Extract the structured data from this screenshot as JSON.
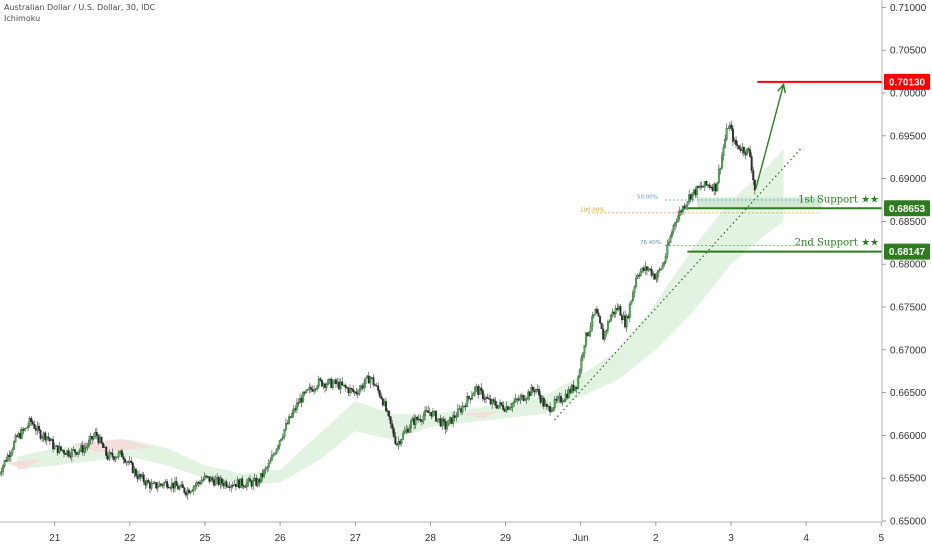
{
  "header": {
    "symbol_line": "Australian Dollar / U.S. Dollar, 30, IDC",
    "indicator": "Ichimoku"
  },
  "chart_data": {
    "type": "candlestick",
    "instrument": "Australian Dollar / U.S. Dollar",
    "timeframe": "30",
    "source": "IDC",
    "indicator": "Ichimoku",
    "y_axis": {
      "ticks": [
        0.65,
        0.655,
        0.66,
        0.665,
        0.67,
        0.675,
        0.68,
        0.685,
        0.69,
        0.695,
        0.7,
        0.705,
        0.71
      ],
      "tick_labels": [
        "0.65000",
        "0.65500",
        "0.66000",
        "0.66500",
        "0.67000",
        "0.67500",
        "0.68000",
        "0.68500",
        "0.69000",
        "0.69500",
        "0.70000",
        "0.70500",
        "0.71000"
      ],
      "ylim": [
        0.6496,
        0.7115
      ]
    },
    "x_axis": {
      "tick_labels": [
        "21",
        "22",
        "25",
        "26",
        "27",
        "28",
        "29",
        "Jun",
        "2",
        "3",
        "4",
        "5"
      ],
      "tick_positions_days": [
        1,
        2,
        3,
        4,
        5,
        6,
        7,
        8,
        9,
        10,
        11,
        12
      ],
      "xlim_days": [
        0.25,
        12.0
      ]
    },
    "price_path": [
      [
        0.25,
        0.6555
      ],
      [
        0.35,
        0.6572
      ],
      [
        0.5,
        0.6598
      ],
      [
        0.6,
        0.6606
      ],
      [
        0.68,
        0.6617
      ],
      [
        0.8,
        0.6602
      ],
      [
        0.9,
        0.6599
      ],
      [
        1.0,
        0.6585
      ],
      [
        1.2,
        0.658
      ],
      [
        1.4,
        0.6585
      ],
      [
        1.55,
        0.6602
      ],
      [
        1.7,
        0.6575
      ],
      [
        1.9,
        0.6578
      ],
      [
        2.1,
        0.6553
      ],
      [
        2.3,
        0.654
      ],
      [
        2.5,
        0.6545
      ],
      [
        2.75,
        0.6535
      ],
      [
        3.0,
        0.655
      ],
      [
        3.2,
        0.6545
      ],
      [
        3.45,
        0.6544
      ],
      [
        3.7,
        0.6545
      ],
      [
        3.85,
        0.6565
      ],
      [
        4.0,
        0.6597
      ],
      [
        4.25,
        0.664
      ],
      [
        4.5,
        0.6662
      ],
      [
        4.75,
        0.666
      ],
      [
        5.0,
        0.665
      ],
      [
        5.2,
        0.6668
      ],
      [
        5.35,
        0.6645
      ],
      [
        5.55,
        0.659
      ],
      [
        5.75,
        0.6615
      ],
      [
        6.0,
        0.6628
      ],
      [
        6.2,
        0.661
      ],
      [
        6.4,
        0.663
      ],
      [
        6.6,
        0.6655
      ],
      [
        6.8,
        0.6638
      ],
      [
        7.0,
        0.6633
      ],
      [
        7.15,
        0.664
      ],
      [
        7.4,
        0.6655
      ],
      [
        7.55,
        0.663
      ],
      [
        7.75,
        0.6643
      ],
      [
        7.95,
        0.666
      ],
      [
        8.05,
        0.671
      ],
      [
        8.2,
        0.6745
      ],
      [
        8.3,
        0.6715
      ],
      [
        8.4,
        0.674
      ],
      [
        8.5,
        0.675
      ],
      [
        8.6,
        0.673
      ],
      [
        8.75,
        0.679
      ],
      [
        8.9,
        0.6795
      ],
      [
        9.0,
        0.6785
      ],
      [
        9.1,
        0.68
      ],
      [
        9.25,
        0.685
      ],
      [
        9.35,
        0.6865
      ],
      [
        9.45,
        0.688
      ],
      [
        9.6,
        0.689
      ],
      [
        9.7,
        0.6893
      ],
      [
        9.8,
        0.689
      ],
      [
        9.92,
        0.6945
      ],
      [
        9.97,
        0.6965
      ],
      [
        10.05,
        0.694
      ],
      [
        10.15,
        0.6935
      ],
      [
        10.25,
        0.693
      ],
      [
        10.32,
        0.6885
      ]
    ],
    "ichimoku_cloud": [
      [
        0.5,
        0.656,
        0.6575
      ],
      [
        1.0,
        0.6565,
        0.6585
      ],
      [
        1.5,
        0.657,
        0.659
      ],
      [
        2.0,
        0.6575,
        0.6595
      ],
      [
        2.5,
        0.6565,
        0.6585
      ],
      [
        3.0,
        0.655,
        0.6565
      ],
      [
        3.5,
        0.6543,
        0.6555
      ],
      [
        4.0,
        0.6545,
        0.656
      ],
      [
        4.5,
        0.657,
        0.66
      ],
      [
        5.0,
        0.6605,
        0.664
      ],
      [
        5.5,
        0.6595,
        0.6625
      ],
      [
        6.0,
        0.661,
        0.6625
      ],
      [
        6.5,
        0.6615,
        0.663
      ],
      [
        7.0,
        0.662,
        0.664
      ],
      [
        7.5,
        0.6625,
        0.6645
      ],
      [
        8.0,
        0.6645,
        0.667
      ],
      [
        8.5,
        0.6665,
        0.67
      ],
      [
        9.0,
        0.67,
        0.6755
      ],
      [
        9.5,
        0.6745,
        0.682
      ],
      [
        10.0,
        0.68,
        0.6875
      ],
      [
        10.4,
        0.683,
        0.6905
      ],
      [
        10.7,
        0.685,
        0.6935
      ]
    ],
    "levels": [
      {
        "name": "resistance",
        "value": 0.7013,
        "label": "0.70130",
        "color": "#ff0000"
      },
      {
        "name": "1st Support",
        "value": 0.68653,
        "label": "0.68653",
        "annotation": "1st Support ★★",
        "color": "#2d7d1f"
      },
      {
        "name": "2nd Support",
        "value": 0.68147,
        "label": "0.68147",
        "annotation": "2nd Support ★★",
        "color": "#2d7d1f"
      }
    ],
    "fibonacci": [
      {
        "label": "50.00%",
        "value": 0.6875,
        "color": "#5b8fd6"
      },
      {
        "label": "100.00%",
        "value": 0.686,
        "color": "#d1a233"
      },
      {
        "label": "76.40%",
        "value": 0.6822,
        "color": "#5b8fd6"
      }
    ],
    "trendline": {
      "start": [
        7.65,
        0.6618
      ],
      "end": [
        10.95,
        0.6937
      ],
      "style": "dotted"
    },
    "projection_arrow": {
      "start": [
        10.33,
        0.6888
      ],
      "end": [
        10.7,
        0.701
      ],
      "color": "#2d7d1f"
    },
    "colors": {
      "up": "#26a69a",
      "down": "#ef5350",
      "candle_dark": "#1f5f1f",
      "cloud_bull": "#d8efd8",
      "cloud_bear": "#f8d8d8"
    }
  }
}
